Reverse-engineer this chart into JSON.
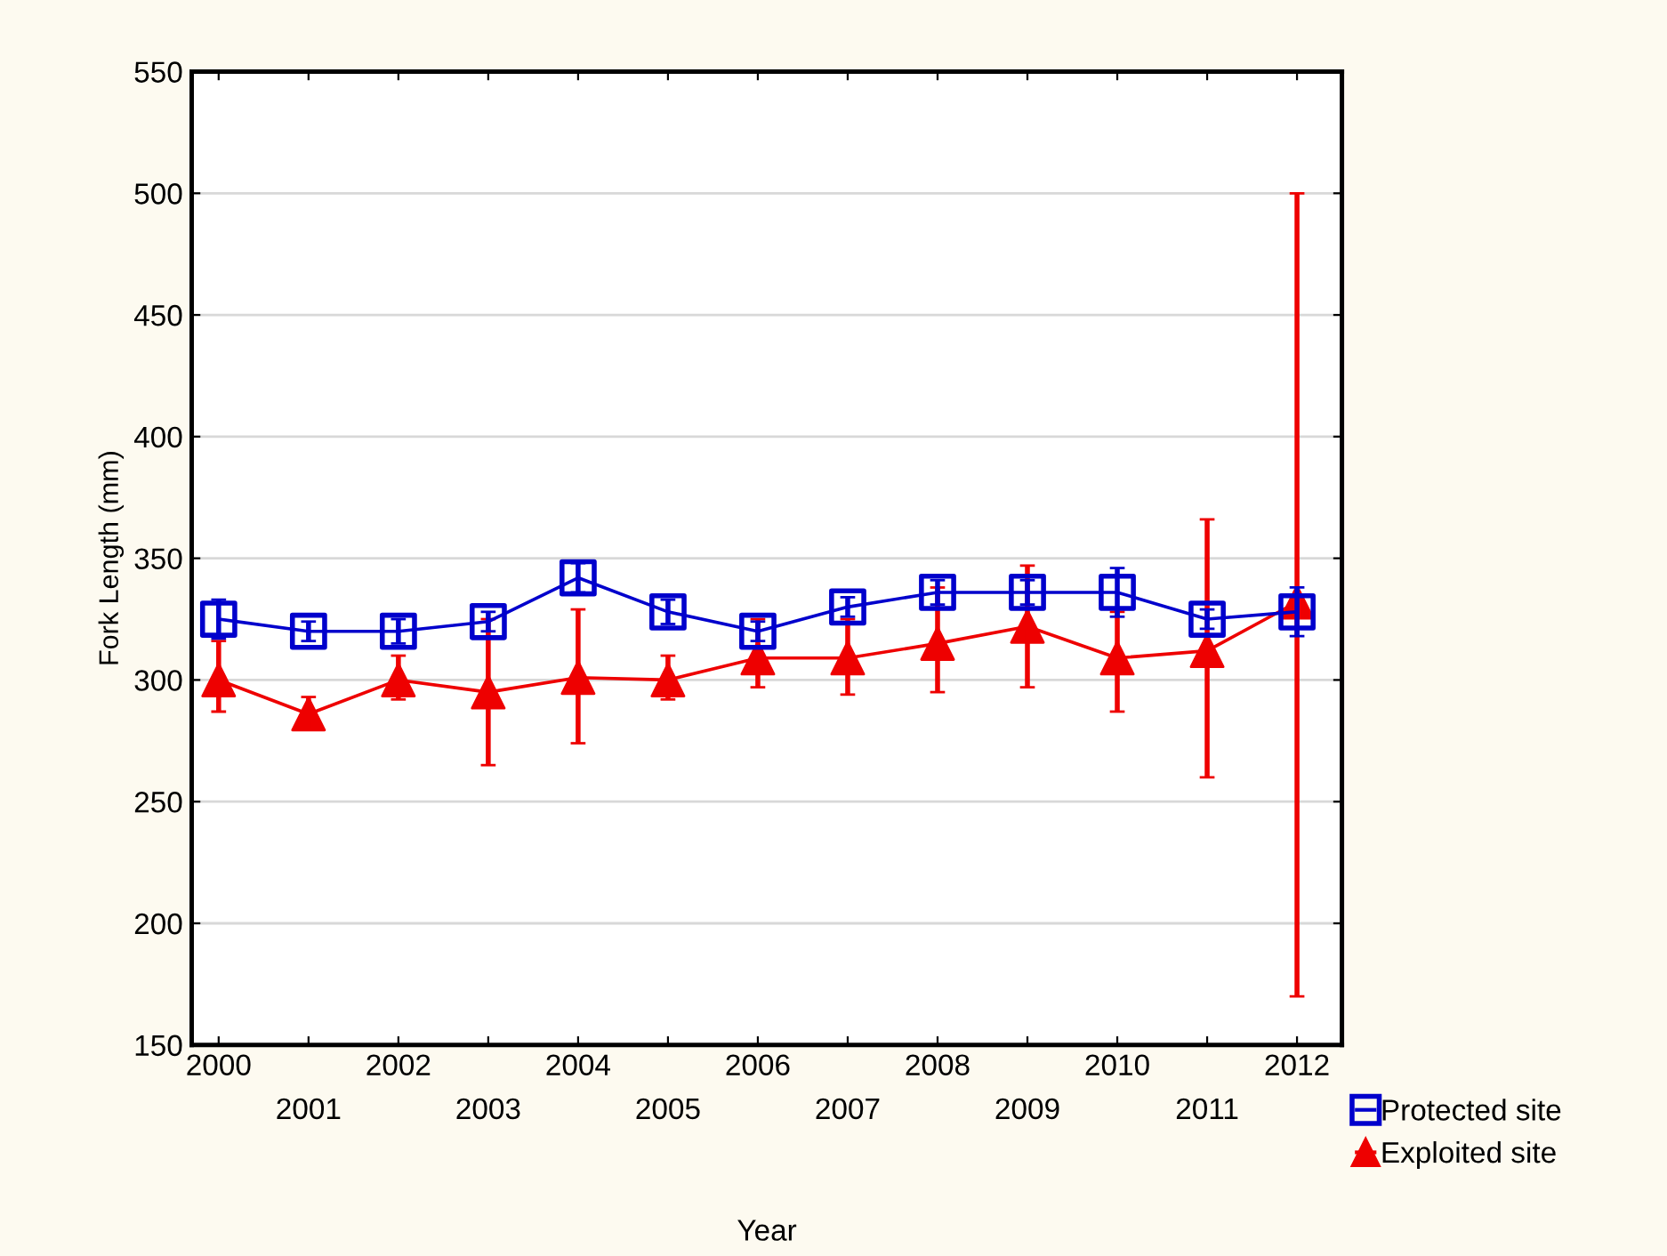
{
  "chart_data": {
    "type": "line",
    "xlabel": "Year",
    "ylabel": "Fork Length (mm)",
    "categories": [
      "2000",
      "2001",
      "2002",
      "2003",
      "2004",
      "2005",
      "2006",
      "2007",
      "2008",
      "2009",
      "2010",
      "2011",
      "2012"
    ],
    "series": [
      {
        "name": "Protected site",
        "color": "#0000cc",
        "marker": "square",
        "values": [
          325,
          320,
          320,
          324,
          342,
          328,
          320,
          330,
          336,
          336,
          336,
          325,
          328
        ],
        "errors": [
          8,
          4,
          5,
          4,
          6,
          5,
          4,
          4,
          5,
          5,
          10,
          4,
          10
        ]
      },
      {
        "name": "Exploited site",
        "color": "#ee0000",
        "marker": "triangle",
        "values": [
          300,
          286,
          300,
          295,
          301,
          300,
          309,
          309,
          315,
          322,
          309,
          312,
          332
        ],
        "errors": [
          [
            287,
            316
          ],
          [
            280,
            293
          ],
          [
            292,
            310
          ],
          [
            265,
            325
          ],
          [
            274,
            329
          ],
          [
            292,
            310
          ],
          [
            297,
            325
          ],
          [
            294,
            325
          ],
          [
            295,
            338
          ],
          [
            297,
            347
          ],
          [
            287,
            328
          ],
          [
            260,
            366
          ],
          [
            170,
            500
          ]
        ]
      }
    ],
    "ylim": [
      150,
      550
    ],
    "yticks": [
      150,
      200,
      250,
      300,
      350,
      400,
      450,
      500,
      550
    ],
    "grid": "y",
    "legend": "bottom right",
    "line_style": "solid"
  }
}
